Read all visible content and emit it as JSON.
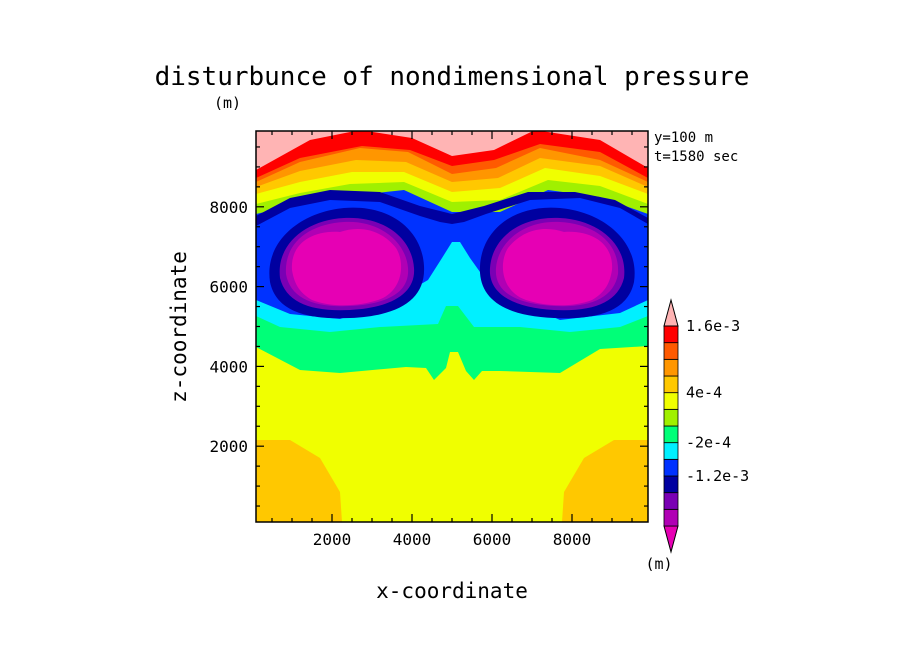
{
  "chart_data": {
    "type": "heatmap",
    "title": "disturbunce of nondimensional pressure",
    "title_unit": "(m)",
    "xlabel": "x-coordinate",
    "ylabel": "z-coordinate",
    "xlim": [
      100,
      9900
    ],
    "ylim": [
      100,
      9900
    ],
    "xticks": [
      2000,
      4000,
      6000,
      8000
    ],
    "xtick_labels": [
      "2000",
      "4000",
      "6000",
      "8000"
    ],
    "yticks": [
      2000,
      4000,
      6000,
      8000
    ],
    "ytick_labels": [
      "2000",
      "4000",
      "6000",
      "8000"
    ],
    "annotations": [
      "y=100 m",
      "t=1580 sec"
    ],
    "colorbar": {
      "unit_label": "(m)",
      "colors": [
        "#e600b4",
        "#b000b4",
        "#7a00b4",
        "#0000a0",
        "#0032ff",
        "#00f0ff",
        "#00ff78",
        "#a0f000",
        "#f0ff00",
        "#ffc800",
        "#ff9600",
        "#ff5a00",
        "#ff0000",
        "#ffb4b4"
      ],
      "labels": [
        {
          "text": "-1.2e-3",
          "index": 3
        },
        {
          "text": "-2e-4",
          "index": 5
        },
        {
          "text": "4e-4",
          "index": 8
        },
        {
          "text": "1.6e-3",
          "index": 12
        }
      ]
    },
    "field_centers": [
      {
        "x": 2250,
        "z": 6700,
        "value": "min"
      },
      {
        "x": 7750,
        "z": 6700,
        "value": "min"
      }
    ]
  }
}
